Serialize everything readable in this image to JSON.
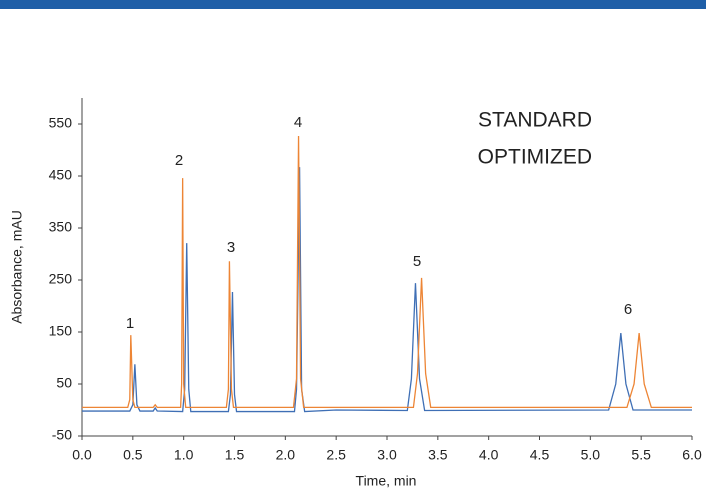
{
  "chart_data": {
    "type": "line",
    "x_label": "Time, min",
    "y_label": "Absorbance, mAU",
    "xlim": [
      0,
      6
    ],
    "xticks": [
      {
        "value": 0,
        "label": "0.0"
      },
      0.5,
      {
        "value": 1,
        "label": "1.0"
      },
      1.5,
      {
        "value": 2,
        "label": "2.0"
      },
      2.5,
      {
        "value": 3,
        "label": "3.0"
      },
      3.5,
      {
        "value": 4,
        "label": "4.0"
      },
      4.5,
      {
        "value": 5,
        "label": "5.0"
      },
      5.5,
      {
        "value": 6,
        "label": "6.0"
      }
    ],
    "ylim": [
      -50,
      600
    ],
    "yticks": [
      -50,
      50,
      150,
      250,
      350,
      450,
      550
    ],
    "grid": false,
    "legend_position": "upper right",
    "annotations": [
      "1",
      "2",
      "3",
      "4",
      "5",
      "6"
    ],
    "series": [
      {
        "name": "STANDARD",
        "color": "#3f6fb5",
        "x": [
          0,
          0.47,
          0.5,
          0.52,
          0.54,
          0.57,
          0.7,
          0.72,
          0.74,
          0.99,
          1.01,
          1.03,
          1.05,
          1.07,
          1.44,
          1.46,
          1.48,
          1.5,
          1.52,
          2.09,
          2.11,
          2.14,
          2.16,
          2.19,
          2.5,
          3.2,
          3.24,
          3.28,
          3.32,
          3.37,
          5.18,
          5.25,
          5.3,
          5.35,
          5.42,
          6
        ],
        "values": [
          -2,
          -2,
          10,
          88,
          10,
          -2,
          -2,
          4,
          -2,
          -3,
          40,
          321,
          40,
          -3,
          -3,
          30,
          227,
          30,
          -3,
          -3,
          40,
          467,
          40,
          -3,
          0,
          -1,
          60,
          244,
          60,
          -1,
          0,
          50,
          148,
          50,
          0,
          0
        ]
      },
      {
        "name": "OPTIMIZED",
        "color": "#ed8535",
        "x": [
          0,
          0.45,
          0.47,
          0.48,
          0.5,
          0.52,
          0.7,
          0.72,
          0.74,
          0.97,
          0.98,
          0.99,
          1,
          1.02,
          1.42,
          1.44,
          1.45,
          1.47,
          1.49,
          2.08,
          2.11,
          2.13,
          2.15,
          2.18,
          2.5,
          3.26,
          3.3,
          3.34,
          3.38,
          3.43,
          5.36,
          5.43,
          5.48,
          5.53,
          5.6,
          6
        ],
        "values": [
          5,
          5,
          20,
          144,
          20,
          5,
          5,
          10,
          5,
          5,
          50,
          446,
          50,
          5,
          5,
          40,
          286,
          40,
          5,
          5,
          60,
          527,
          60,
          5,
          5,
          5,
          70,
          254,
          70,
          5,
          5,
          50,
          148,
          50,
          5,
          5
        ]
      }
    ]
  }
}
